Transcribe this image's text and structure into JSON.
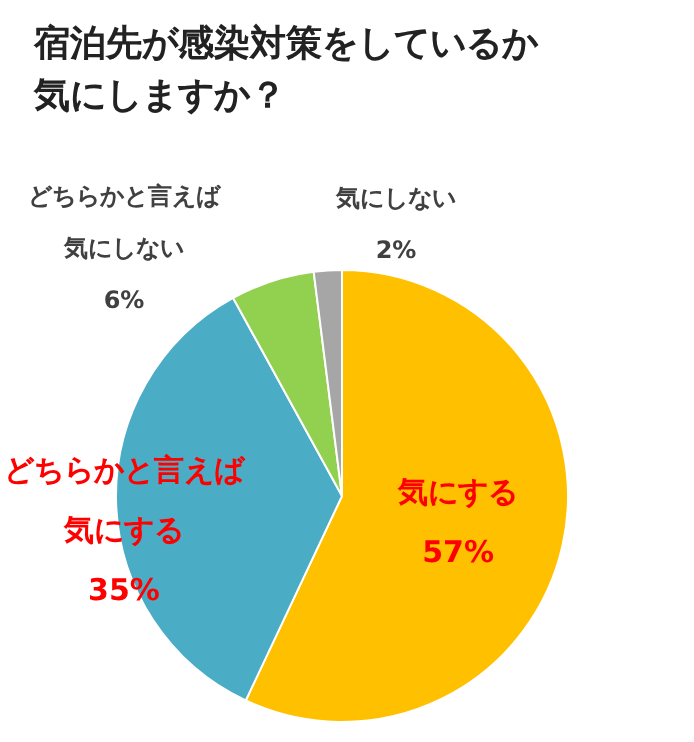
{
  "chart_data": {
    "type": "pie",
    "title": "宿泊先が感染対策をしているか気にしますか？",
    "categories": [
      "気にする",
      "どちらかと言えば気にする",
      "どちらかと言えば気にしない",
      "気にしない"
    ],
    "values": [
      57,
      35,
      6,
      2
    ],
    "colors": [
      "#ffc000",
      "#4bacc6",
      "#92d050",
      "#a6a6a6"
    ],
    "value_labels": [
      "57%",
      "35%",
      "6%",
      "2%"
    ],
    "legend": false
  }
}
